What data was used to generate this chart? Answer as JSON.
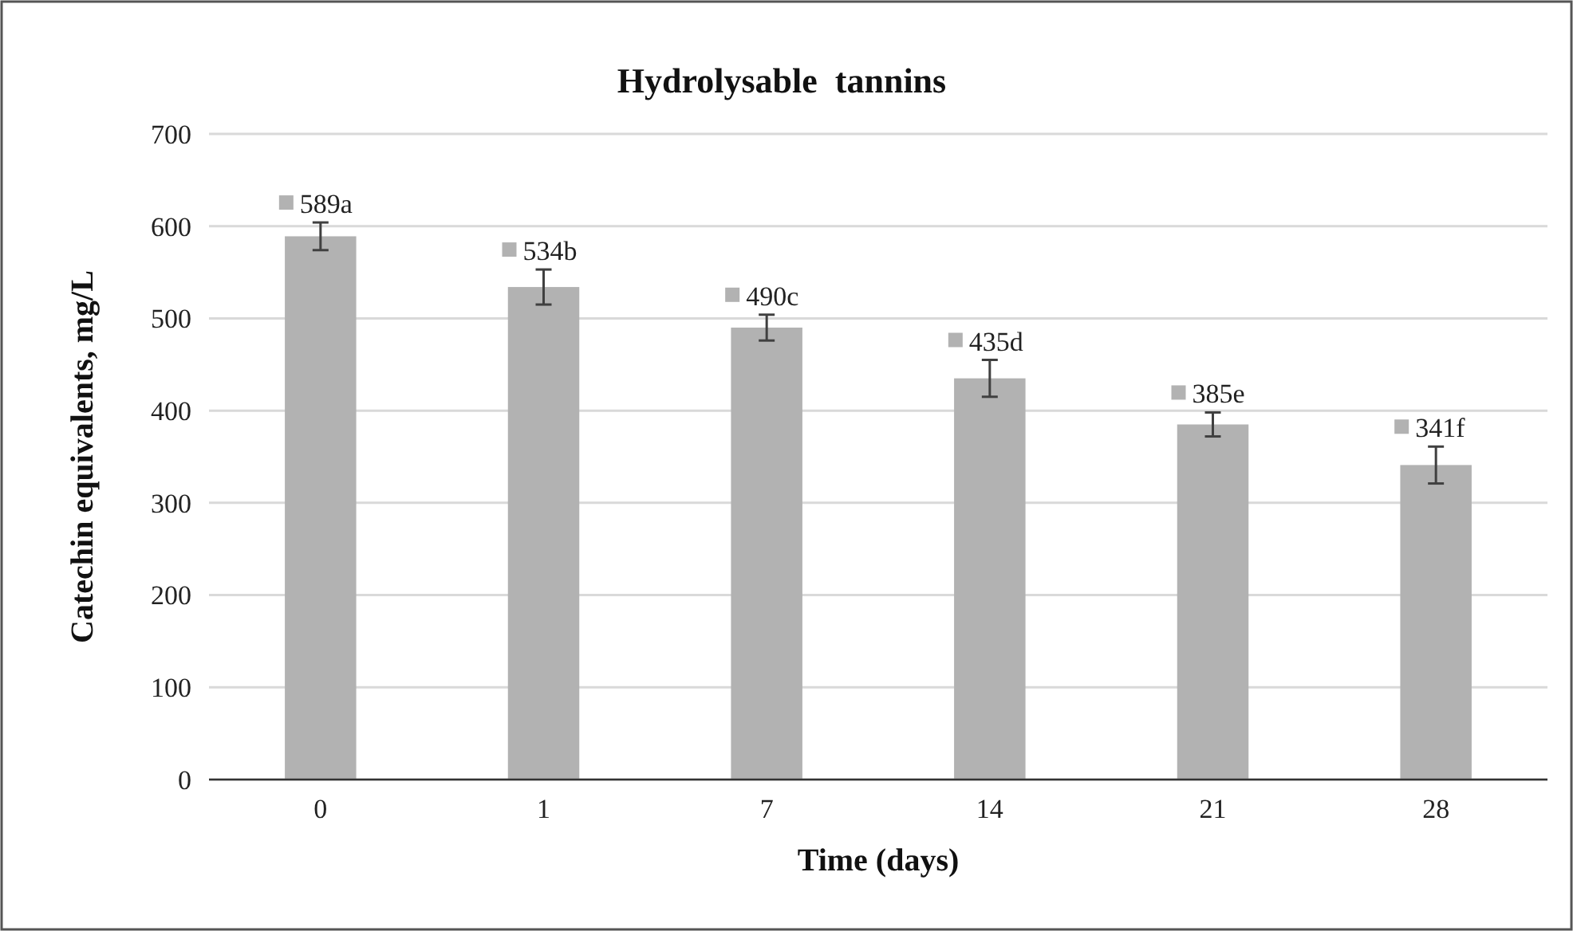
{
  "chart_data": {
    "type": "bar",
    "title": "Hydrolysable  tannins",
    "xlabel": "Time (days)",
    "ylabel": "Catechin equivalents, mg/L",
    "categories": [
      "0",
      "1",
      "7",
      "14",
      "21",
      "28"
    ],
    "values": [
      589,
      534,
      490,
      435,
      385,
      341
    ],
    "errors": [
      15,
      19,
      14,
      20,
      13,
      20
    ],
    "value_labels": [
      "589a",
      "534b",
      "490c",
      "435d",
      "385e",
      "341f"
    ],
    "color": "#b2b2b2",
    "ylim": [
      0,
      700
    ],
    "yticks": [
      0,
      100,
      200,
      300,
      400,
      500,
      600,
      700
    ],
    "grid": "y"
  }
}
